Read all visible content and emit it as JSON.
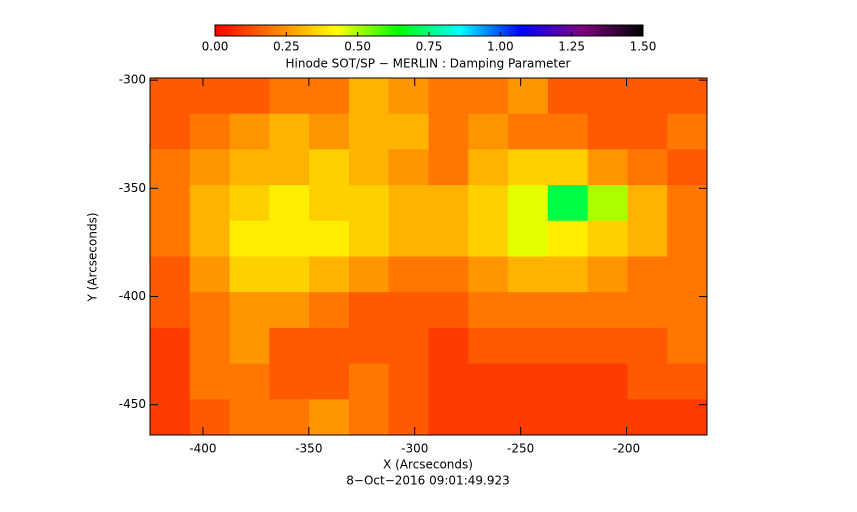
{
  "chart_data": {
    "type": "heatmap",
    "title": "Hinode SOT/SP − MERLIN : Damping Parameter",
    "xlabel": "X (Arcseconds)",
    "ylabel": "Y (Arcseconds)",
    "footer": "8−Oct−2016 09:01:49.923",
    "xlim": [
      -425,
      -162
    ],
    "ylim": [
      -464,
      -299
    ],
    "xticks": [
      -400,
      -350,
      -300,
      -250,
      -200
    ],
    "yticks": [
      -300,
      -350,
      -400,
      -450
    ],
    "colormap": [
      "#ff0000",
      "#ff8000",
      "#ffff00",
      "#00ff00",
      "#00ffff",
      "#0000ff",
      "#800080",
      "#000000"
    ],
    "clim": [
      0,
      1.5
    ],
    "cticks": [
      {
        "value": 0,
        "label": "0.00"
      },
      {
        "value": 0.25,
        "label": "0.25"
      },
      {
        "value": 0.5,
        "label": "0.50"
      },
      {
        "value": 0.75,
        "label": "0.75"
      },
      {
        "value": 1,
        "label": "1.00"
      },
      {
        "value": 1.25,
        "label": "1.25"
      },
      {
        "value": 1.5,
        "label": "1.50"
      }
    ],
    "z": [
      [
        0.15,
        0.15,
        0.15,
        0.2,
        0.2,
        0.3,
        0.25,
        0.2,
        0.2,
        0.25,
        0.15,
        0.15,
        0.15,
        0.15
      ],
      [
        0.15,
        0.2,
        0.25,
        0.3,
        0.25,
        0.3,
        0.3,
        0.2,
        0.25,
        0.2,
        0.2,
        0.15,
        0.15,
        0.2
      ],
      [
        0.2,
        0.25,
        0.3,
        0.3,
        0.35,
        0.3,
        0.25,
        0.2,
        0.3,
        0.35,
        0.35,
        0.25,
        0.2,
        0.15
      ],
      [
        0.2,
        0.3,
        0.35,
        0.4,
        0.35,
        0.35,
        0.3,
        0.3,
        0.35,
        0.45,
        0.7,
        0.5,
        0.3,
        0.2
      ],
      [
        0.2,
        0.3,
        0.4,
        0.4,
        0.4,
        0.35,
        0.3,
        0.3,
        0.35,
        0.45,
        0.4,
        0.35,
        0.3,
        0.2
      ],
      [
        0.15,
        0.25,
        0.35,
        0.35,
        0.3,
        0.25,
        0.2,
        0.2,
        0.25,
        0.3,
        0.3,
        0.25,
        0.2,
        0.2
      ],
      [
        0.15,
        0.2,
        0.25,
        0.25,
        0.2,
        0.15,
        0.15,
        0.15,
        0.2,
        0.2,
        0.2,
        0.2,
        0.2,
        0.2
      ],
      [
        0.1,
        0.2,
        0.25,
        0.15,
        0.15,
        0.15,
        0.15,
        0.1,
        0.15,
        0.15,
        0.15,
        0.15,
        0.15,
        0.2
      ],
      [
        0.1,
        0.2,
        0.2,
        0.15,
        0.15,
        0.2,
        0.15,
        0.1,
        0.1,
        0.1,
        0.1,
        0.1,
        0.15,
        0.15
      ],
      [
        0.1,
        0.15,
        0.2,
        0.2,
        0.25,
        0.2,
        0.15,
        0.1,
        0.1,
        0.1,
        0.1,
        0.1,
        0.1,
        0.1
      ]
    ]
  }
}
